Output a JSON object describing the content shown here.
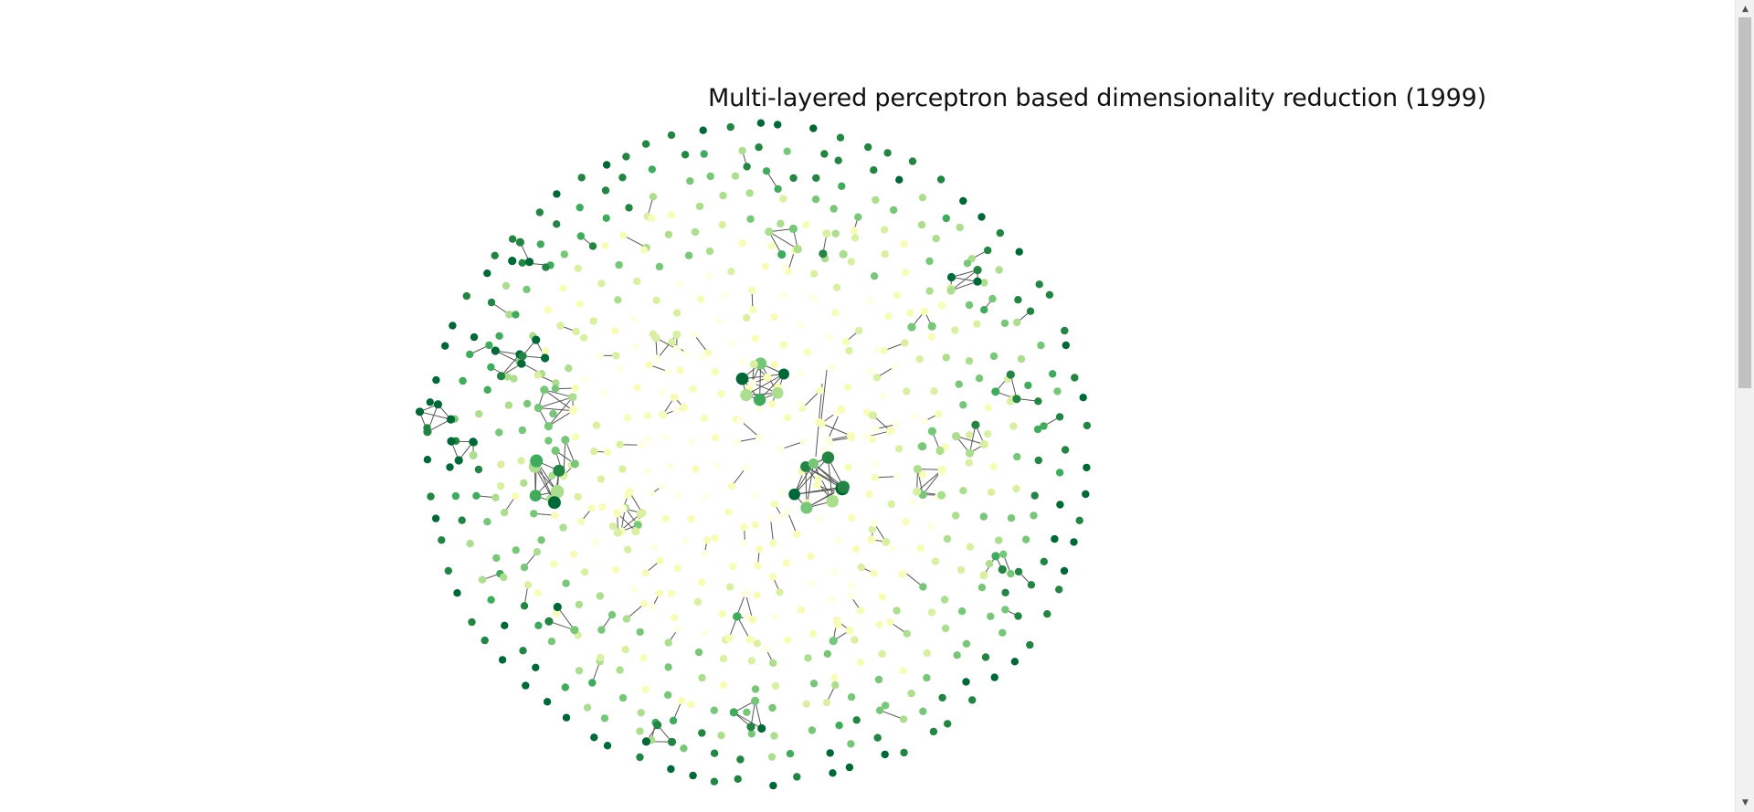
{
  "graph": {
    "title": "Multi-layered perceptron based dimensionality reduction (1999)",
    "palette": [
      "#ffffe5",
      "#f7fcb9",
      "#d9f0a3",
      "#addd8e",
      "#78c679",
      "#41ab5d",
      "#238443",
      "#006837"
    ],
    "edge_color": "#555555"
  },
  "scrollbar": {
    "up_arrow": "▲",
    "down_arrow": "▼"
  }
}
